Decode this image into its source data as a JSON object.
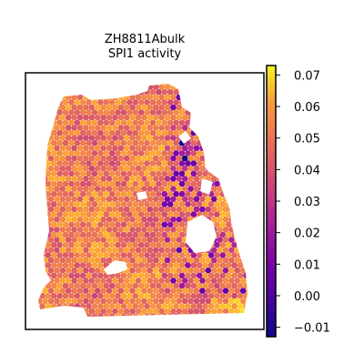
{
  "chart_data": {
    "type": "heatmap",
    "subtype": "spatial-hexbin",
    "title": "ZH8811Abulk",
    "subtitle": "SPI1 activity",
    "colormap": "plasma",
    "colorbar": {
      "vmin": -0.013,
      "vmax": 0.073,
      "ticks": [
        0.07,
        0.06,
        0.05,
        0.04,
        0.03,
        0.02,
        0.01,
        0.0,
        -0.01
      ],
      "tick_labels": [
        "0.07",
        "0.06",
        "0.05",
        "0.04",
        "0.03",
        "0.02",
        "0.01",
        "0.00",
        "−0.01"
      ],
      "placement": "right"
    },
    "axes": {
      "xticks": [],
      "yticks": [],
      "frame": true
    },
    "tissue_outline_description_only_for_render": null
  }
}
